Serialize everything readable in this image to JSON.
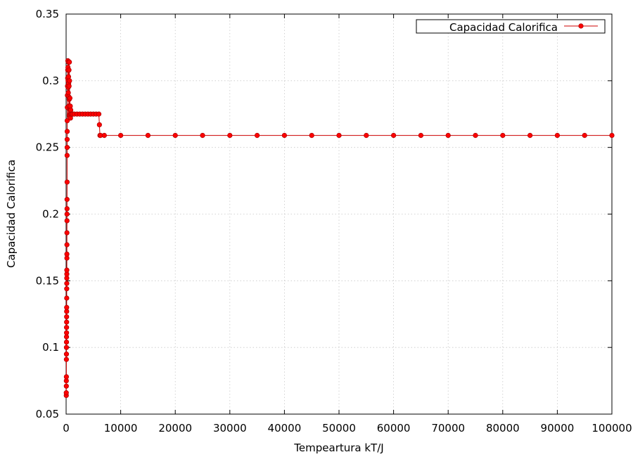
{
  "chart_data": {
    "type": "line",
    "title": "",
    "xlabel": "Tempeartura kT/J",
    "ylabel": "Capacidad Calorifica",
    "xlim": [
      0,
      100000
    ],
    "ylim": [
      0.05,
      0.35
    ],
    "x_ticks": [
      0,
      10000,
      20000,
      30000,
      40000,
      50000,
      60000,
      70000,
      80000,
      90000,
      100000
    ],
    "x_tick_labels": [
      "0",
      "10000",
      "20000",
      "30000",
      "40000",
      "50000",
      "60000",
      "70000",
      "80000",
      "90000",
      "100000"
    ],
    "y_ticks": [
      0.05,
      0.1,
      0.15,
      0.2,
      0.25,
      0.3,
      0.35
    ],
    "y_tick_labels": [
      "0.05",
      "0.1",
      "0.15",
      "0.2",
      "0.25",
      "0.3",
      "0.35"
    ],
    "grid": true,
    "legend_position": "top-right",
    "series": [
      {
        "name": "Capacidad Calorifica",
        "color": "#ff0000",
        "marker": "circle",
        "x": [
          30,
          30,
          40,
          40,
          50,
          50,
          60,
          60,
          70,
          70,
          80,
          80,
          90,
          90,
          100,
          100,
          110,
          110,
          120,
          120,
          130,
          130,
          140,
          140,
          150,
          150,
          160,
          160,
          170,
          170,
          180,
          180,
          190,
          190,
          200,
          200,
          220,
          240,
          260,
          280,
          300,
          320,
          340,
          360,
          380,
          400,
          420,
          440,
          460,
          480,
          500,
          520,
          540,
          560,
          580,
          600,
          620,
          640,
          660,
          680,
          700,
          720,
          740,
          760,
          780,
          800,
          850,
          900,
          1000,
          1200,
          1500,
          2000,
          2500,
          3000,
          3500,
          4000,
          4500,
          5000,
          5500,
          6000,
          6100,
          6200,
          6300,
          7000,
          10000,
          15000,
          20000,
          25000,
          30000,
          35000,
          40000,
          45000,
          50000,
          55000,
          60000,
          65000,
          70000,
          75000,
          80000,
          85000,
          90000,
          95000,
          100000
        ],
        "y": [
          0.064,
          0.066,
          0.071,
          0.075,
          0.078,
          0.091,
          0.095,
          0.1,
          0.104,
          0.108,
          0.111,
          0.115,
          0.119,
          0.123,
          0.127,
          0.13,
          0.137,
          0.144,
          0.148,
          0.152,
          0.155,
          0.158,
          0.167,
          0.17,
          0.177,
          0.186,
          0.195,
          0.2,
          0.204,
          0.211,
          0.224,
          0.244,
          0.25,
          0.256,
          0.262,
          0.27,
          0.28,
          0.289,
          0.296,
          0.302,
          0.308,
          0.315,
          0.31,
          0.3,
          0.295,
          0.291,
          0.314,
          0.303,
          0.298,
          0.288,
          0.281,
          0.308,
          0.296,
          0.286,
          0.274,
          0.314,
          0.3,
          0.287,
          0.279,
          0.275,
          0.287,
          0.278,
          0.273,
          0.281,
          0.276,
          0.272,
          0.278,
          0.275,
          0.275,
          0.275,
          0.275,
          0.275,
          0.275,
          0.275,
          0.275,
          0.275,
          0.275,
          0.275,
          0.275,
          0.275,
          0.267,
          0.259,
          0.259,
          0.259,
          0.259,
          0.259,
          0.259,
          0.259,
          0.259,
          0.259,
          0.259,
          0.259,
          0.259,
          0.259,
          0.259,
          0.259,
          0.259,
          0.259,
          0.259,
          0.259,
          0.259,
          0.259,
          0.259
        ]
      }
    ]
  }
}
